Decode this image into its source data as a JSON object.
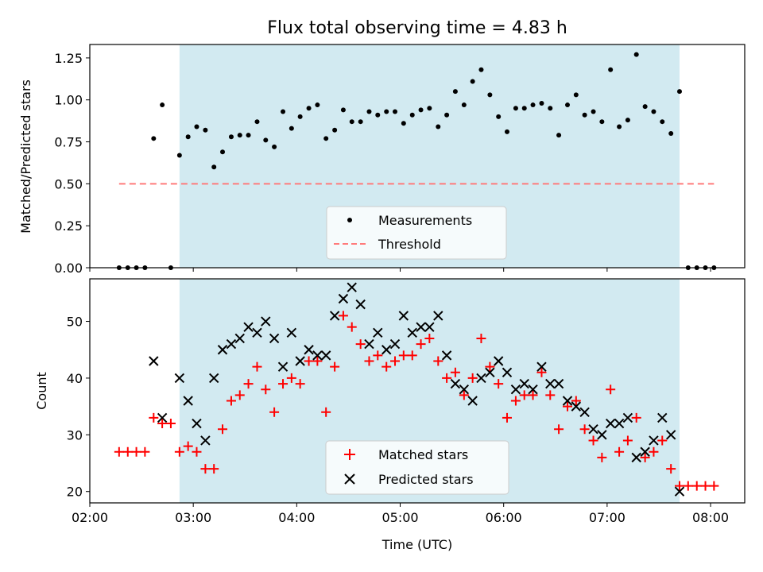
{
  "chart_data": {
    "type": "scatter",
    "title": "Flux total observing time = 4.83 h",
    "xlabel": "Time (UTC)",
    "x_unit": "hours UTC",
    "xlim": [
      2.0,
      8.33
    ],
    "x_ticks": [
      {
        "value": 2,
        "label": "02:00"
      },
      {
        "value": 3,
        "label": "03:00"
      },
      {
        "value": 4,
        "label": "04:00"
      },
      {
        "value": 5,
        "label": "05:00"
      },
      {
        "value": 6,
        "label": "06:00"
      },
      {
        "value": 7,
        "label": "07:00"
      },
      {
        "value": 8,
        "label": "08:00"
      }
    ],
    "observing_window": [
      2.867,
      7.7
    ],
    "observing_window_color": "#add8e6",
    "panels": [
      {
        "id": "top",
        "ylabel": "Matched/Predicted stars",
        "ylim": [
          0,
          1.33
        ],
        "y_ticks": [
          {
            "value": 0.0,
            "label": "0.00"
          },
          {
            "value": 0.25,
            "label": "0.25"
          },
          {
            "value": 0.5,
            "label": "0.50"
          },
          {
            "value": 0.75,
            "label": "0.75"
          },
          {
            "value": 1.0,
            "label": "1.00"
          },
          {
            "value": 1.25,
            "label": "1.25"
          }
        ],
        "series": [
          {
            "name": "Measurements",
            "marker": "dot",
            "color": "#000000",
            "x": [
              2.283,
              2.367,
              2.45,
              2.533,
              2.783,
              2.617,
              2.7,
              2.867,
              2.95,
              3.033,
              3.117,
              3.2,
              3.283,
              3.367,
              3.45,
              3.533,
              3.617,
              3.7,
              3.783,
              3.867,
              3.95,
              4.033,
              4.117,
              4.2,
              4.283,
              4.367,
              4.45,
              4.533,
              4.617,
              4.7,
              4.783,
              4.867,
              4.95,
              5.033,
              5.117,
              5.2,
              5.283,
              5.367,
              5.45,
              5.533,
              5.617,
              5.7,
              5.783,
              5.867,
              5.95,
              6.033,
              6.117,
              6.2,
              6.283,
              6.367,
              6.45,
              6.533,
              6.617,
              6.7,
              6.783,
              6.867,
              6.95,
              7.033,
              7.117,
              7.2,
              7.283,
              7.367,
              7.45,
              7.533,
              7.617,
              7.7,
              7.783,
              7.867,
              7.95,
              8.033
            ],
            "y": [
              0,
              0,
              0,
              0,
              0,
              0.77,
              0.97,
              0.67,
              0.78,
              0.84,
              0.82,
              0.6,
              0.69,
              0.78,
              0.79,
              0.79,
              0.87,
              0.76,
              0.72,
              0.93,
              0.83,
              0.9,
              0.95,
              0.97,
              0.77,
              0.82,
              0.94,
              0.87,
              0.87,
              0.93,
              0.91,
              0.93,
              0.93,
              0.86,
              0.91,
              0.94,
              0.95,
              0.84,
              0.91,
              1.05,
              0.97,
              1.11,
              1.18,
              1.03,
              0.9,
              0.81,
              0.95,
              0.95,
              0.97,
              0.98,
              0.95,
              0.79,
              0.97,
              1.03,
              0.91,
              0.93,
              0.87,
              1.18,
              0.84,
              0.88,
              1.27,
              0.96,
              0.93,
              0.87,
              0.8,
              1.05,
              0,
              0,
              0,
              0
            ]
          },
          {
            "name": "Threshold",
            "marker": "dashed-line",
            "color": "#ff7b7b",
            "x": [
              2.283,
              8.033
            ],
            "y": [
              0.5,
              0.5
            ]
          }
        ],
        "legend_position": "lower-center"
      },
      {
        "id": "bottom",
        "ylabel": "Count",
        "ylim": [
          18,
          57.5
        ],
        "y_ticks": [
          {
            "value": 20,
            "label": "20"
          },
          {
            "value": 30,
            "label": "30"
          },
          {
            "value": 40,
            "label": "40"
          },
          {
            "value": 50,
            "label": "50"
          }
        ],
        "series": [
          {
            "name": "Matched stars",
            "marker": "plus",
            "color": "#ff0000",
            "x": [
              2.283,
              2.367,
              2.45,
              2.533,
              2.617,
              2.7,
              2.783,
              2.867,
              2.95,
              3.033,
              3.117,
              3.2,
              3.283,
              3.367,
              3.45,
              3.533,
              3.617,
              3.7,
              3.783,
              3.867,
              3.95,
              4.033,
              4.117,
              4.2,
              4.283,
              4.367,
              4.45,
              4.533,
              4.617,
              4.7,
              4.783,
              4.867,
              4.95,
              5.033,
              5.117,
              5.2,
              5.283,
              5.367,
              5.45,
              5.533,
              5.617,
              5.7,
              5.783,
              5.867,
              5.95,
              6.033,
              6.117,
              6.2,
              6.283,
              6.367,
              6.45,
              6.533,
              6.617,
              6.7,
              6.783,
              6.867,
              6.95,
              7.033,
              7.117,
              7.2,
              7.283,
              7.367,
              7.45,
              7.533,
              7.617,
              7.7,
              7.783,
              7.867,
              7.95,
              8.033
            ],
            "y": [
              27,
              27,
              27,
              27,
              33,
              32,
              32,
              27,
              28,
              27,
              24,
              24,
              31,
              36,
              37,
              39,
              42,
              38,
              34,
              39,
              40,
              39,
              43,
              43,
              34,
              42,
              51,
              49,
              46,
              43,
              44,
              42,
              43,
              44,
              44,
              46,
              47,
              43,
              40,
              41,
              37,
              40,
              47,
              42,
              39,
              33,
              36,
              37,
              37,
              41,
              37,
              31,
              35,
              36,
              31,
              29,
              26,
              38,
              27,
              29,
              33,
              26,
              27,
              29,
              24,
              21,
              21,
              21,
              21,
              21
            ]
          },
          {
            "name": "Predicted stars",
            "marker": "x",
            "color": "#000000",
            "x": [
              2.617,
              2.7,
              2.867,
              2.95,
              3.033,
              3.117,
              3.2,
              3.283,
              3.367,
              3.45,
              3.533,
              3.617,
              3.7,
              3.783,
              3.867,
              3.95,
              4.033,
              4.117,
              4.2,
              4.283,
              4.367,
              4.45,
              4.533,
              4.617,
              4.7,
              4.783,
              4.867,
              4.95,
              5.033,
              5.117,
              5.2,
              5.283,
              5.367,
              5.45,
              5.533,
              5.617,
              5.7,
              5.783,
              5.867,
              5.95,
              6.033,
              6.117,
              6.2,
              6.283,
              6.367,
              6.45,
              6.533,
              6.617,
              6.7,
              6.783,
              6.867,
              6.95,
              7.033,
              7.117,
              7.2,
              7.283,
              7.367,
              7.45,
              7.533,
              7.617,
              7.7
            ],
            "y": [
              43,
              33,
              40,
              36,
              32,
              29,
              40,
              45,
              46,
              47,
              49,
              48,
              50,
              47,
              42,
              48,
              43,
              45,
              44,
              44,
              51,
              54,
              56,
              53,
              46,
              48,
              45,
              46,
              51,
              48,
              49,
              49,
              51,
              44,
              39,
              38,
              36,
              40,
              41,
              43,
              41,
              38,
              39,
              38,
              42,
              39,
              39,
              36,
              35,
              34,
              31,
              30,
              32,
              32,
              33,
              26,
              27,
              29,
              33,
              30,
              20
            ]
          }
        ],
        "legend_position": "lower-center"
      }
    ]
  }
}
